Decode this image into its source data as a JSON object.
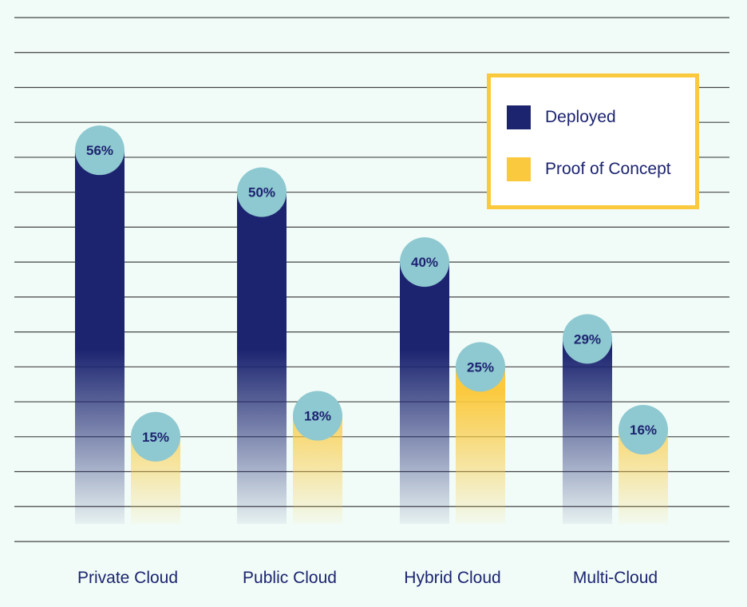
{
  "colors": {
    "background": "#f1fcf8",
    "deployed": "#1c2470",
    "proof_of_concept": "#fbc93d",
    "bubble": "#8ec8d0",
    "gridline": "#444444",
    "text": "#1c2470"
  },
  "legend": {
    "placement": "top-right",
    "items": [
      {
        "label": "Deployed",
        "color": "#1c2470"
      },
      {
        "label": "Proof of Concept",
        "color": "#fbc93d"
      }
    ]
  },
  "chart_data": {
    "type": "bar",
    "title": "",
    "xlabel": "",
    "ylabel": "",
    "categories": [
      "Private Cloud",
      "Public Cloud",
      "Hybrid Cloud",
      "Multi-Cloud"
    ],
    "series": [
      {
        "name": "Deployed",
        "values": [
          56,
          50,
          40,
          29
        ],
        "labels": [
          "56%",
          "50%",
          "40%",
          "29%"
        ]
      },
      {
        "name": "Proof of Concept",
        "values": [
          15,
          18,
          25,
          16
        ],
        "labels": [
          "15%",
          "18%",
          "25%",
          "16%"
        ]
      }
    ],
    "ylim": [
      0,
      75
    ],
    "grid": true,
    "bars_fade_to_background": true,
    "value_labels_in_bubbles": true
  }
}
